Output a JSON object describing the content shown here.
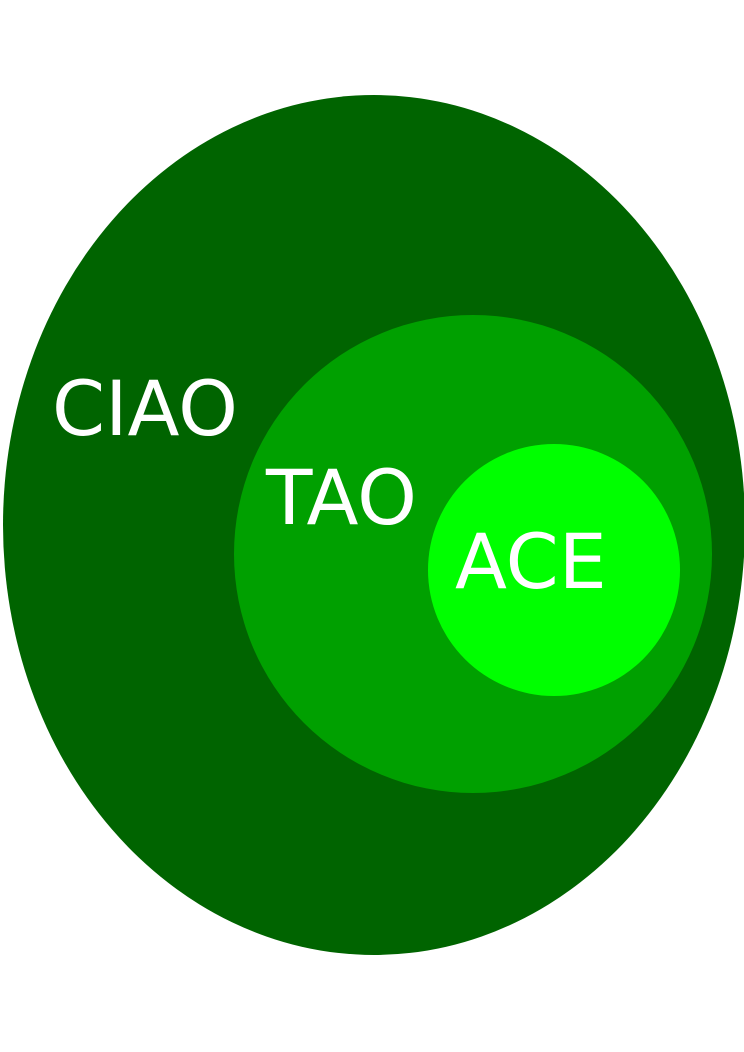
{
  "sets": [
    {
      "id": "outer",
      "label": "CIAO",
      "color": "#006400"
    },
    {
      "id": "middle",
      "label": "TAO",
      "color": "#00A000"
    },
    {
      "id": "inner",
      "label": "ACE",
      "color": "#00FF00"
    }
  ],
  "label_color": "#ffffff",
  "background": "#ffffff"
}
